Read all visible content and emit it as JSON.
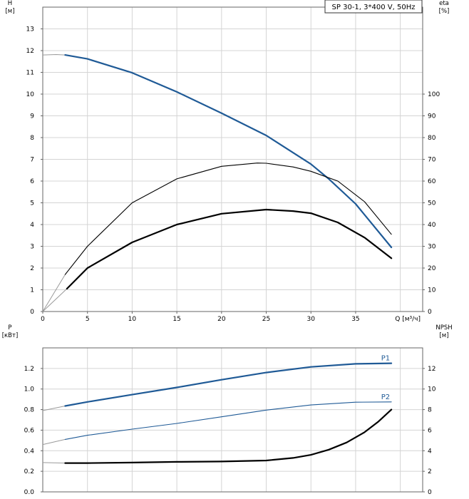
{
  "legend": "SP 30-1, 3*400 V, 50Hz",
  "chart_data": [
    {
      "id": "top",
      "type": "line",
      "xlabel": "Q [м³/ч]",
      "xlim": [
        0,
        42.5
      ],
      "x_ticks": [
        0,
        5,
        10,
        15,
        20,
        25,
        30,
        35
      ],
      "ylabel_left": "H\n[м]",
      "ylim_left": [
        0,
        14
      ],
      "y_ticks_left": [
        0,
        1,
        2,
        3,
        4,
        5,
        6,
        7,
        8,
        9,
        10,
        11,
        12,
        13
      ],
      "ylabel_right": "eta\n[%]",
      "ylim_right": [
        0,
        140
      ],
      "y_ticks_right": [
        0,
        10,
        20,
        30,
        40,
        50,
        60,
        70,
        80,
        90,
        100
      ],
      "grid": true,
      "series": [
        {
          "axis": "left",
          "color": "#1f5a96",
          "width": 2.2,
          "x_ext": [
            0,
            1.5,
            2.5
          ],
          "y_ext": [
            11.8,
            11.82,
            11.8
          ],
          "x": [
            2.5,
            5,
            10,
            15,
            20,
            25,
            30,
            32,
            35,
            39
          ],
          "y": [
            11.8,
            11.62,
            10.98,
            10.1,
            9.12,
            8.1,
            6.78,
            6.1,
            4.95,
            2.95
          ]
        },
        {
          "axis": "right",
          "color": "#000000",
          "width": 1.1,
          "x_ext": [
            0,
            2.5
          ],
          "y_ext": [
            0,
            17
          ],
          "x": [
            2.5,
            5,
            10,
            15,
            20,
            24,
            25,
            28,
            30,
            33,
            36,
            39
          ],
          "y": [
            17,
            30,
            50,
            61,
            66.8,
            68.3,
            68.2,
            66.5,
            64.5,
            60,
            50.5,
            35.5
          ]
        },
        {
          "axis": "left",
          "color": "#000000",
          "width": 2.2,
          "x_ext": [
            0,
            2.7
          ],
          "y_ext": [
            0,
            1.05
          ],
          "x": [
            2.7,
            5,
            10,
            15,
            20,
            25,
            28,
            30,
            33,
            36,
            39
          ],
          "y": [
            1.05,
            2.0,
            3.18,
            4.0,
            4.5,
            4.69,
            4.62,
            4.52,
            4.1,
            3.4,
            2.45
          ]
        }
      ]
    },
    {
      "id": "bottom",
      "type": "line",
      "xlim": [
        0,
        42.5
      ],
      "ylabel_left": "P\n[кВт]",
      "ylim_left": [
        0,
        1.4
      ],
      "y_ticks_left": [
        0.0,
        0.2,
        0.4,
        0.6,
        0.8,
        1.0,
        1.2
      ],
      "ylabel_right": "NPSH\n[м]",
      "ylim_right": [
        0,
        14
      ],
      "y_ticks_right": [
        0,
        2,
        4,
        6,
        8,
        10,
        12
      ],
      "grid": true,
      "series": [
        {
          "name": "P1",
          "axis": "left",
          "color": "#1f5a96",
          "width": 2.2,
          "x_ext": [
            0,
            2.5
          ],
          "y_ext": [
            0.79,
            0.835
          ],
          "x": [
            2.5,
            5,
            10,
            15,
            20,
            25,
            30,
            35,
            39
          ],
          "y": [
            0.835,
            0.875,
            0.945,
            1.015,
            1.09,
            1.16,
            1.215,
            1.245,
            1.25
          ]
        },
        {
          "name": "P2",
          "axis": "left",
          "color": "#1f5a96",
          "width": 1.1,
          "x_ext": [
            0,
            2.5
          ],
          "y_ext": [
            0.46,
            0.51
          ],
          "x": [
            2.5,
            5,
            10,
            15,
            20,
            25,
            30,
            35,
            39
          ],
          "y": [
            0.51,
            0.55,
            0.61,
            0.665,
            0.73,
            0.795,
            0.845,
            0.872,
            0.875
          ]
        },
        {
          "axis": "right",
          "color": "#000000",
          "width": 2.2,
          "x_ext": [
            0,
            2.5
          ],
          "y_ext": [
            2.85,
            2.8
          ],
          "x": [
            2.5,
            5,
            10,
            15,
            20,
            25,
            28,
            30,
            32,
            34,
            36,
            37.5,
            39
          ],
          "y": [
            2.8,
            2.8,
            2.85,
            2.92,
            2.95,
            3.05,
            3.3,
            3.6,
            4.1,
            4.8,
            5.8,
            6.8,
            8.0
          ]
        }
      ]
    }
  ]
}
